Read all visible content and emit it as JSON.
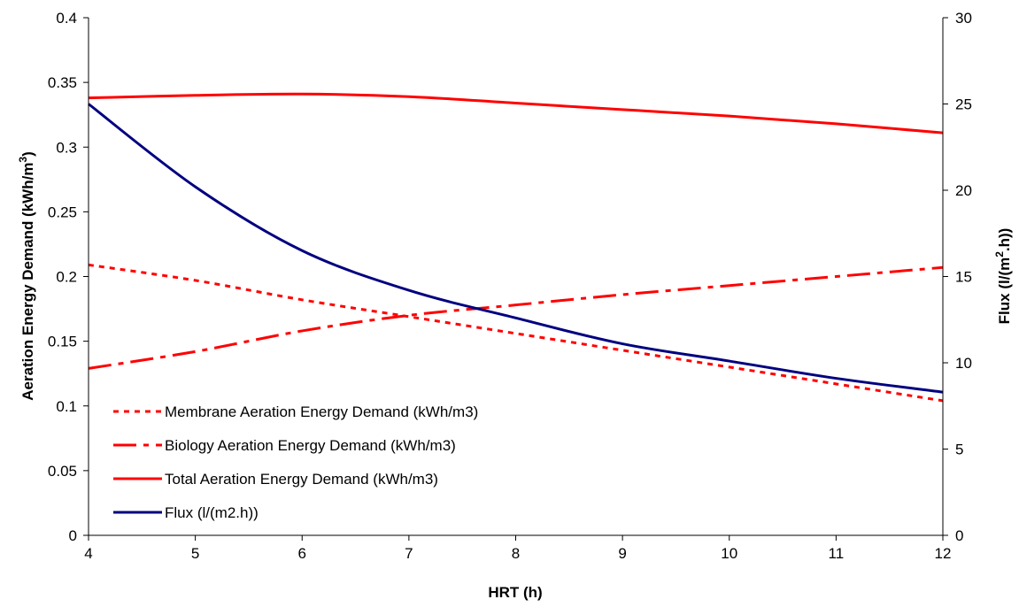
{
  "chart_data": {
    "type": "line",
    "xlabel": "HRT (h)",
    "ylabel_left": "Aeration Energy Demand (kWh/m",
    "ylabel_left_sup": "3",
    "ylabel_left_close": ")",
    "ylabel_right": "Flux (l/(m",
    "ylabel_right_sup": "2",
    "ylabel_right_close": ".h))",
    "xlim": [
      4,
      12
    ],
    "ylim_left": [
      0,
      0.4
    ],
    "ylim_right": [
      0,
      30
    ],
    "x_ticks": [
      4,
      5,
      6,
      7,
      8,
      9,
      10,
      11,
      12
    ],
    "x_tick_labels": [
      "4",
      "5",
      "6",
      "7",
      "8",
      "9",
      "10",
      "11",
      "12"
    ],
    "y_left_ticks": [
      0,
      0.05,
      0.1,
      0.15,
      0.2,
      0.25,
      0.3,
      0.35,
      0.4
    ],
    "y_left_tick_labels": [
      "0",
      "0.05",
      "0.1",
      "0.15",
      "0.2",
      "0.25",
      "0.3",
      "0.35",
      "0.4"
    ],
    "y_right_ticks": [
      0,
      5,
      10,
      15,
      20,
      25,
      30
    ],
    "y_right_tick_labels": [
      "0",
      "5",
      "10",
      "15",
      "20",
      "25",
      "30"
    ],
    "grid": false,
    "legend_position": "bottom-left",
    "series": [
      {
        "name": "Membrane Aeration Energy Demand (kWh/m3)",
        "axis": "left",
        "color": "#ff0000",
        "style": "dotted",
        "x": [
          4,
          5,
          6,
          7,
          8,
          9,
          10,
          11,
          12
        ],
        "y": [
          0.209,
          0.197,
          0.182,
          0.169,
          0.156,
          0.143,
          0.13,
          0.117,
          0.104
        ]
      },
      {
        "name": "Biology Aeration Energy Demand (kWh/m3)",
        "axis": "left",
        "color": "#ff0000",
        "style": "dashdot",
        "x": [
          4,
          5,
          6,
          7,
          8,
          9,
          10,
          11,
          12
        ],
        "y": [
          0.129,
          0.142,
          0.158,
          0.17,
          0.178,
          0.186,
          0.193,
          0.2,
          0.207
        ]
      },
      {
        "name": "Total Aeration Energy Demand (kWh/m3)",
        "axis": "left",
        "color": "#ff0000",
        "style": "solid",
        "x": [
          4,
          5,
          6,
          7,
          8,
          9,
          10,
          11,
          12
        ],
        "y": [
          0.338,
          0.34,
          0.341,
          0.339,
          0.334,
          0.329,
          0.324,
          0.318,
          0.311
        ]
      },
      {
        "name": "Flux (l/(m2.h))",
        "axis": "right",
        "color": "#000080",
        "style": "solid",
        "x": [
          4,
          5,
          6,
          7,
          8,
          9,
          10,
          11,
          12
        ],
        "y": [
          25.0,
          20.2,
          16.5,
          14.2,
          12.6,
          11.1,
          10.1,
          9.1,
          8.3
        ]
      }
    ]
  }
}
